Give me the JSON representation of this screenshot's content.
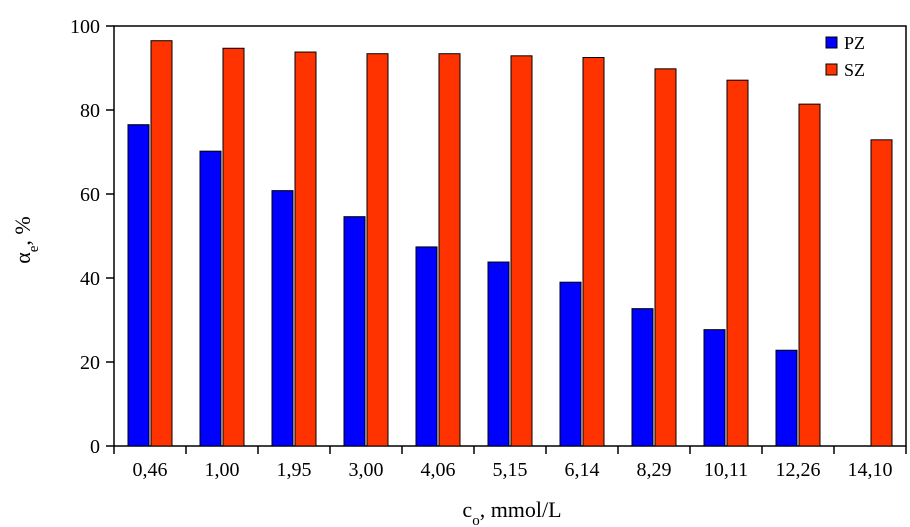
{
  "chart_data": {
    "type": "bar",
    "xlabel_main": "c",
    "xlabel_sub": "o",
    "xlabel_rest": ", mmol/L",
    "ylabel_main": "α",
    "ylabel_sub": "e",
    "ylabel_rest": ", %",
    "ylim": [
      0,
      100
    ],
    "yticks": [
      "0",
      "20",
      "40",
      "60",
      "80",
      "100"
    ],
    "grid": false,
    "legend_position": "top-right",
    "categories": [
      "0,46",
      "1,00",
      "1,95",
      "3,00",
      "4,06",
      "5,15",
      "6,14",
      "8,29",
      "10,11",
      "12,26",
      "14,10"
    ],
    "series": [
      {
        "name": "PZ",
        "color": "#0000ff",
        "values": [
          76.5,
          70.2,
          60.8,
          54.6,
          47.4,
          43.8,
          39.0,
          32.7,
          27.7,
          22.8,
          null
        ]
      },
      {
        "name": "SZ",
        "color": "#ff3300",
        "values": [
          96.5,
          94.7,
          93.8,
          93.4,
          93.4,
          92.9,
          92.5,
          89.8,
          87.1,
          81.4,
          72.9
        ]
      }
    ]
  }
}
